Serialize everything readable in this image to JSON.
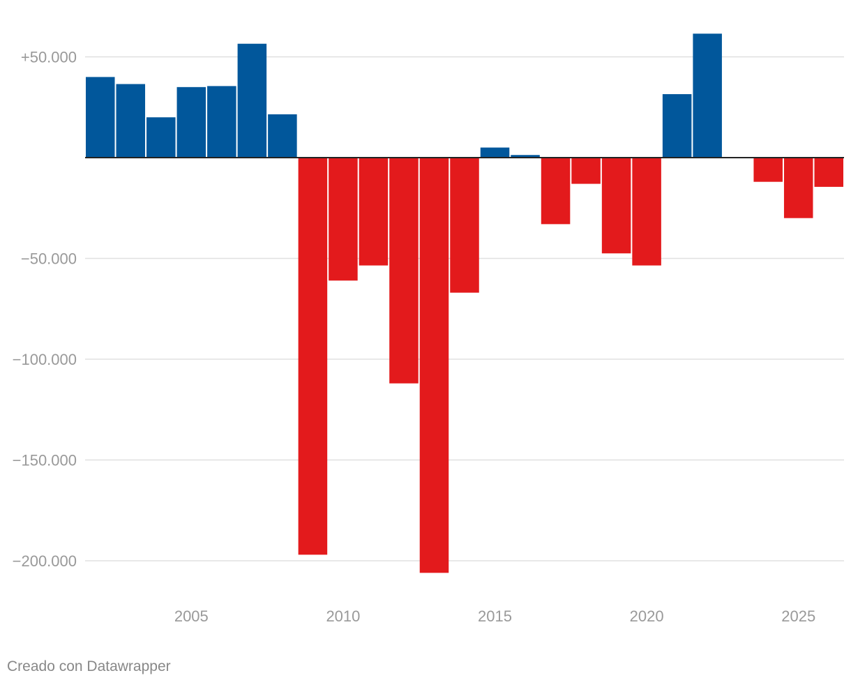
{
  "chart_data": {
    "type": "bar",
    "title": "",
    "xlabel": "",
    "ylabel": "",
    "x": [
      2002,
      2003,
      2004,
      2005,
      2006,
      2007,
      2008,
      2009,
      2010,
      2011,
      2012,
      2013,
      2014,
      2015,
      2016,
      2017,
      2018,
      2019,
      2020,
      2021,
      2022,
      2023,
      2024,
      2025,
      2026
    ],
    "values": [
      40000,
      36500,
      20000,
      35000,
      35500,
      56500,
      21500,
      -197000,
      -61000,
      -53500,
      -112000,
      -206000,
      -67000,
      5000,
      1300,
      -33000,
      -13000,
      -47500,
      -53500,
      31500,
      61500,
      0,
      -12000,
      -30000,
      -14500
    ],
    "ylim": [
      -212000,
      63000
    ],
    "xlim": [
      2001.5,
      2026.5
    ],
    "yticks": [
      {
        "value": 50000,
        "label": "+50.000"
      },
      {
        "value": -50000,
        "label": "−50.000"
      },
      {
        "value": -100000,
        "label": "−100.000"
      },
      {
        "value": -150000,
        "label": "−150.000"
      },
      {
        "value": -200000,
        "label": "−200.000"
      }
    ],
    "xticks": [
      {
        "value": 2005,
        "label": "2005"
      },
      {
        "value": 2010,
        "label": "2010"
      },
      {
        "value": 2015,
        "label": "2015"
      },
      {
        "value": 2020,
        "label": "2020"
      },
      {
        "value": 2025,
        "label": "2025"
      }
    ],
    "grid": true,
    "colors": {
      "positive": "#01579b",
      "negative": "#e31a1c",
      "grid": "#e0e0e0",
      "zero_line": "#222222",
      "tick_label": "#999999"
    }
  },
  "credit": "Creado con Datawrapper"
}
